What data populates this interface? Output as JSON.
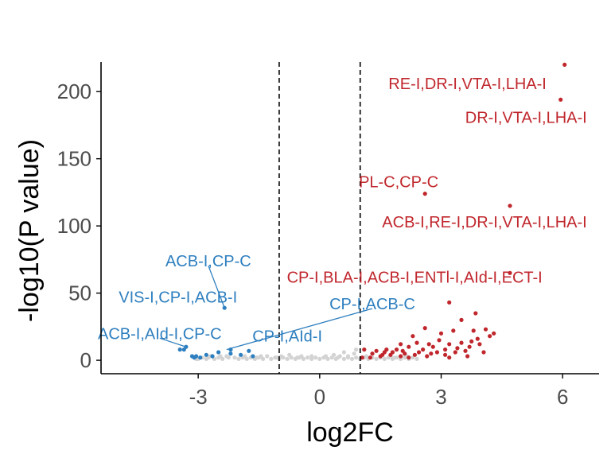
{
  "chart_data": {
    "type": "scatter",
    "title": "",
    "xlabel": "log2FC",
    "ylabel": "-log10(P value)",
    "xlim": [
      -5.4,
      6.9
    ],
    "ylim": [
      -10,
      222
    ],
    "x_ticks": [
      -3,
      0,
      3,
      6
    ],
    "y_ticks": [
      0,
      50,
      100,
      150,
      200
    ],
    "x_tick_labels": [
      "-3",
      "0",
      "3",
      "6"
    ],
    "y_tick_labels": [
      "0",
      "50",
      "100",
      "150",
      "200"
    ],
    "grid": false,
    "legend": "none",
    "thresholds": {
      "x": [
        -1,
        1
      ]
    },
    "colors": {
      "up": "#c0272d",
      "down": "#2e7fbf",
      "ns": "#d3d3d3",
      "axis": "#000000"
    },
    "series": [
      {
        "group": "up",
        "points": [
          [
            6.05,
            220
          ],
          [
            5.95,
            194
          ],
          [
            4.7,
            115
          ],
          [
            2.6,
            124
          ],
          [
            4.7,
            65
          ],
          [
            3.2,
            43
          ],
          [
            3.85,
            35
          ],
          [
            3.5,
            30
          ],
          [
            4.1,
            23
          ],
          [
            2.6,
            24
          ],
          [
            3.8,
            22
          ],
          [
            3.0,
            20
          ],
          [
            3.3,
            22
          ],
          [
            4.3,
            20
          ],
          [
            4.2,
            18
          ],
          [
            3.9,
            16
          ],
          [
            2.3,
            18
          ],
          [
            2.7,
            12
          ],
          [
            3.2,
            12
          ],
          [
            3.5,
            13
          ],
          [
            3.75,
            14
          ],
          [
            3.95,
            12
          ],
          [
            2.2,
            10
          ],
          [
            2.8,
            10
          ],
          [
            3.1,
            8
          ],
          [
            3.4,
            9
          ],
          [
            3.7,
            10
          ],
          [
            2.0,
            12
          ],
          [
            1.9,
            8
          ],
          [
            1.6,
            6
          ],
          [
            1.3,
            5
          ],
          [
            1.1,
            8
          ],
          [
            1.5,
            3
          ],
          [
            1.75,
            4
          ],
          [
            2.1,
            5
          ],
          [
            2.45,
            6
          ],
          [
            2.4,
            13
          ],
          [
            2.65,
            3
          ],
          [
            3.35,
            6
          ],
          [
            3.1,
            4
          ],
          [
            2.9,
            6
          ],
          [
            2.55,
            8
          ],
          [
            1.4,
            7
          ],
          [
            1.55,
            4
          ],
          [
            2.0,
            3
          ],
          [
            2.2,
            2
          ],
          [
            2.35,
            4
          ],
          [
            1.8,
            6
          ],
          [
            2.95,
            15
          ],
          [
            3.6,
            7
          ],
          [
            2.05,
            7
          ],
          [
            1.25,
            2
          ],
          [
            1.05,
            2
          ],
          [
            1.65,
            8
          ],
          [
            2.75,
            5
          ],
          [
            3.2,
            2
          ],
          [
            4.05,
            6
          ],
          [
            3.65,
            3
          ]
        ]
      },
      {
        "group": "down",
        "points": [
          [
            -2.35,
            39
          ],
          [
            -3.3,
            10
          ],
          [
            -3.35,
            8
          ],
          [
            -3.45,
            8
          ],
          [
            -2.2,
            8
          ],
          [
            -2.2,
            5
          ],
          [
            -1.95,
            4
          ],
          [
            -1.65,
            3
          ],
          [
            -2.65,
            3
          ],
          [
            -2.5,
            6
          ],
          [
            -2.95,
            2
          ],
          [
            -3.05,
            3
          ],
          [
            -3.1,
            2
          ],
          [
            -2.8,
            4
          ],
          [
            -1.75,
            7
          ],
          [
            -3.15,
            3
          ]
        ]
      },
      {
        "group": "ns",
        "points": [
          [
            -3.0,
            1
          ],
          [
            -2.9,
            2
          ],
          [
            -2.8,
            1
          ],
          [
            -2.7,
            3
          ],
          [
            -2.6,
            1
          ],
          [
            -2.5,
            2
          ],
          [
            -2.4,
            1
          ],
          [
            -2.3,
            3
          ],
          [
            -2.1,
            2
          ],
          [
            -2.0,
            1
          ],
          [
            -1.9,
            2
          ],
          [
            -1.8,
            1
          ],
          [
            -1.7,
            2
          ],
          [
            -1.6,
            1
          ],
          [
            -1.5,
            2
          ],
          [
            -1.4,
            1
          ],
          [
            -1.3,
            3
          ],
          [
            -1.2,
            1
          ],
          [
            -1.1,
            2
          ],
          [
            -1.0,
            1
          ],
          [
            -0.9,
            2
          ],
          [
            -0.8,
            1
          ],
          [
            -0.7,
            2
          ],
          [
            -0.6,
            1
          ],
          [
            -0.5,
            2
          ],
          [
            -0.4,
            1
          ],
          [
            -0.3,
            2
          ],
          [
            -0.2,
            1
          ],
          [
            -0.1,
            2
          ],
          [
            0.0,
            1
          ],
          [
            0.1,
            2
          ],
          [
            0.2,
            1
          ],
          [
            0.3,
            2
          ],
          [
            0.4,
            1
          ],
          [
            0.5,
            3
          ],
          [
            0.6,
            1
          ],
          [
            0.7,
            2
          ],
          [
            0.8,
            1
          ],
          [
            0.9,
            2
          ],
          [
            1.0,
            1
          ],
          [
            1.1,
            2
          ],
          [
            1.2,
            1
          ],
          [
            1.3,
            2
          ],
          [
            1.4,
            1
          ],
          [
            1.5,
            2
          ],
          [
            1.6,
            1
          ],
          [
            1.7,
            2
          ],
          [
            1.8,
            1
          ],
          [
            1.9,
            2
          ],
          [
            2.0,
            1
          ],
          [
            2.1,
            2
          ],
          [
            2.2,
            1
          ],
          [
            2.3,
            2
          ],
          [
            2.4,
            1
          ],
          [
            -0.75,
            4
          ],
          [
            -0.2,
            3
          ],
          [
            0.35,
            4
          ],
          [
            0.7,
            3
          ],
          [
            0.85,
            5
          ],
          [
            0.9,
            8
          ],
          [
            0.6,
            6
          ],
          [
            -0.45,
            3
          ],
          [
            0.15,
            3
          ],
          [
            -1.45,
            3
          ],
          [
            -2.45,
            3
          ],
          [
            -1.85,
            3
          ],
          [
            -0.95,
            3
          ],
          [
            1.15,
            3
          ],
          [
            1.75,
            3
          ],
          [
            -3.05,
            1
          ],
          [
            -2.75,
            2
          ],
          [
            -2.25,
            2
          ],
          [
            -1.55,
            2
          ],
          [
            -1.05,
            2
          ],
          [
            -0.55,
            2
          ],
          [
            0.45,
            2
          ],
          [
            1.25,
            2
          ],
          [
            1.85,
            2
          ],
          [
            2.15,
            3
          ]
        ]
      }
    ],
    "annotations": [
      {
        "text": "RE-I,DR-I,VTA-I,LHA-I",
        "group": "up",
        "lx": 5.6,
        "ly": 206,
        "px": null,
        "py": null,
        "anchor": "end"
      },
      {
        "text": "DR-I,VTA-I,LHA-I",
        "group": "up",
        "lx": 6.6,
        "ly": 181,
        "px": null,
        "py": null,
        "anchor": "end"
      },
      {
        "text": "PL-C,CP-C",
        "group": "up",
        "lx": 1.95,
        "ly": 133,
        "px": null,
        "py": null,
        "anchor": "middle"
      },
      {
        "text": "ACB-I,RE-I,DR-I,VTA-I,LHA-I",
        "group": "up",
        "lx": 6.6,
        "ly": 103,
        "px": null,
        "py": null,
        "anchor": "end"
      },
      {
        "text": "CP-I,BLA-I,ACB-I,ENTl-I,AId-I,ECT-I",
        "group": "up",
        "lx": 5.5,
        "ly": 62,
        "px": null,
        "py": null,
        "anchor": "end"
      },
      {
        "text": "ACB-I,CP-C",
        "group": "down",
        "lx": -2.75,
        "ly": 74,
        "px": -2.35,
        "py": 39,
        "anchor": "middle"
      },
      {
        "text": "VIS-I,CP-I,ACB-I",
        "group": "down",
        "lx": -3.5,
        "ly": 47,
        "px": null,
        "py": null,
        "anchor": "middle"
      },
      {
        "text": "CP-I,ACB-C",
        "group": "down",
        "lx": 1.3,
        "ly": 42,
        "px": -2.3,
        "py": 8,
        "anchor": "middle"
      },
      {
        "text": "ACB-I,AId-I,CP-C",
        "group": "down",
        "lx": -3.95,
        "ly": 20,
        "px": -3.3,
        "py": 10,
        "anchor": "middle"
      },
      {
        "text": "CP-I,AId-I",
        "group": "down",
        "lx": -0.8,
        "ly": 18,
        "px": null,
        "py": null,
        "anchor": "middle"
      }
    ]
  }
}
